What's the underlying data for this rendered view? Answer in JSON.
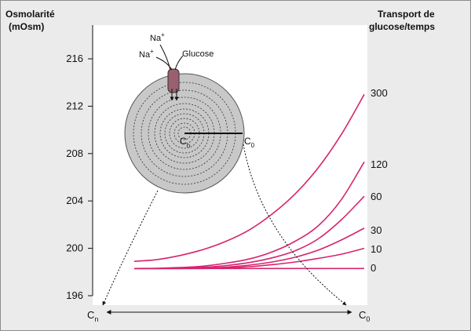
{
  "chart_data": {
    "type": "line",
    "ylabel_line1": "Osmolarité",
    "ylabel_line2": "(mOsm)",
    "legend_title_line1": "Transport de",
    "legend_title_line2": "glucose/temps",
    "ylim": [
      196,
      216
    ],
    "yticks": [
      "216",
      "212",
      "208",
      "204",
      "200",
      "196"
    ],
    "xlabel_left": "C",
    "xlabel_left_sub": "n",
    "xlabel_right": "C",
    "xlabel_right_sub": "0",
    "x_range": [
      0,
      1
    ],
    "series": [
      {
        "name": "300",
        "x": [
          0,
          0.1,
          0.2,
          0.3,
          0.4,
          0.5,
          0.6,
          0.7,
          0.8,
          0.9,
          1.0
        ],
        "values": [
          198.9,
          199.05,
          199.4,
          199.9,
          200.6,
          201.55,
          202.9,
          204.6,
          206.8,
          209.6,
          213.0
        ]
      },
      {
        "name": "120",
        "x": [
          0,
          0.1,
          0.2,
          0.3,
          0.4,
          0.5,
          0.6,
          0.7,
          0.8,
          0.9,
          1.0
        ],
        "values": [
          198.3,
          198.32,
          198.38,
          198.5,
          198.75,
          199.1,
          199.7,
          200.6,
          201.9,
          204.1,
          207.3
        ]
      },
      {
        "name": "60",
        "x": [
          0,
          0.1,
          0.2,
          0.3,
          0.4,
          0.5,
          0.6,
          0.7,
          0.8,
          0.9,
          1.0
        ],
        "values": [
          198.3,
          198.3,
          198.32,
          198.4,
          198.55,
          198.8,
          199.2,
          199.8,
          200.8,
          202.4,
          204.4
        ]
      },
      {
        "name": "30",
        "x": [
          0,
          0.1,
          0.2,
          0.3,
          0.4,
          0.5,
          0.6,
          0.7,
          0.8,
          0.9,
          1.0
        ],
        "values": [
          198.3,
          198.3,
          198.3,
          198.33,
          198.42,
          198.58,
          198.85,
          199.25,
          199.85,
          200.7,
          201.7
        ]
      },
      {
        "name": "10",
        "x": [
          0,
          0.1,
          0.2,
          0.3,
          0.4,
          0.5,
          0.6,
          0.7,
          0.8,
          0.9,
          1.0
        ],
        "values": [
          198.3,
          198.3,
          198.3,
          198.3,
          198.35,
          198.45,
          198.62,
          198.85,
          199.15,
          199.5,
          200.0
        ]
      },
      {
        "name": "0",
        "x": [
          0,
          1.0
        ],
        "values": [
          198.3,
          198.3
        ]
      }
    ],
    "line_color": "#d6246e",
    "inset": {
      "ion_label_1": "Na",
      "ion_label_1_sup": "+",
      "ion_label_2": "Na",
      "ion_label_2_sup": "+",
      "glucose_label": "Glucose",
      "center_label": "C",
      "center_label_sub": "n",
      "edge_label": "C",
      "edge_label_sub": "0",
      "cell_color": "#c8c8c8",
      "transporter_color": "#9a6070"
    }
  }
}
